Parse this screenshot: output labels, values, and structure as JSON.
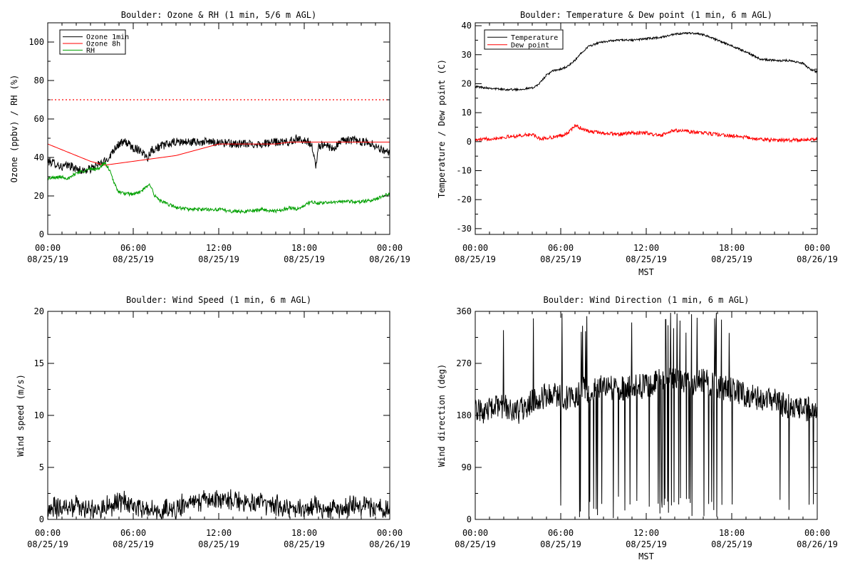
{
  "chart_data": [
    {
      "id": "ozone-rh",
      "type": "line",
      "title": "Boulder: Ozone & RH (1 min, 5/6 m AGL)",
      "ylabel": "Ozone (ppbv) / RH (%)",
      "xlabel": "",
      "ylim": [
        0,
        110
      ],
      "yticks": [
        0,
        20,
        40,
        60,
        80,
        100
      ],
      "xlim": [
        0,
        24
      ],
      "xticks": [
        {
          "value": 0,
          "time": "00:00",
          "date": "08/25/19"
        },
        {
          "value": 6,
          "time": "06:00",
          "date": "08/25/19"
        },
        {
          "value": 12,
          "time": "12:00",
          "date": "08/25/19"
        },
        {
          "value": 18,
          "time": "18:00",
          "date": "08/25/19"
        },
        {
          "value": 24,
          "time": "00:00",
          "date": "08/26/19"
        }
      ],
      "legend": {
        "position": "top-left"
      },
      "reference_lines": [
        {
          "y": 70,
          "color": "#ff0000",
          "style": "dotted"
        }
      ],
      "series": [
        {
          "name": "Ozone 1min",
          "color": "#000000",
          "noise": 2.2,
          "points": [
            [
              0,
              38
            ],
            [
              0.5,
              37
            ],
            [
              1,
              35
            ],
            [
              1.5,
              36
            ],
            [
              2,
              34
            ],
            [
              2.5,
              33
            ],
            [
              3,
              34
            ],
            [
              3.5,
              36
            ],
            [
              4,
              38
            ],
            [
              4.3,
              40
            ],
            [
              4.7,
              45
            ],
            [
              5,
              47
            ],
            [
              5.5,
              48
            ],
            [
              6,
              45
            ],
            [
              6.5,
              44
            ],
            [
              7,
              40
            ],
            [
              7.3,
              44
            ],
            [
              8,
              46
            ],
            [
              8.5,
              47
            ],
            [
              9,
              48
            ],
            [
              10,
              48
            ],
            [
              11,
              48
            ],
            [
              12,
              48
            ],
            [
              13,
              47
            ],
            [
              14,
              47
            ],
            [
              15,
              47
            ],
            [
              16,
              48
            ],
            [
              17,
              48
            ],
            [
              17.5,
              50
            ],
            [
              18,
              49
            ],
            [
              18.5,
              47
            ],
            [
              18.8,
              35
            ],
            [
              19,
              46
            ],
            [
              19.5,
              47
            ],
            [
              20,
              44
            ],
            [
              20.5,
              48
            ],
            [
              21,
              49
            ],
            [
              21.5,
              49
            ],
            [
              22,
              48
            ],
            [
              22.5,
              48
            ],
            [
              23,
              46
            ],
            [
              23.5,
              44
            ],
            [
              24,
              42
            ]
          ]
        },
        {
          "name": "Ozone 8h",
          "color": "#ff0000",
          "noise": 0,
          "points": [
            [
              0,
              47
            ],
            [
              1,
              44
            ],
            [
              2,
              41
            ],
            [
              3,
              38
            ],
            [
              4,
              36
            ],
            [
              5,
              37
            ],
            [
              6,
              38
            ],
            [
              7,
              39
            ],
            [
              8,
              40
            ],
            [
              9,
              41
            ],
            [
              10,
              43
            ],
            [
              11,
              45
            ],
            [
              12,
              47
            ],
            [
              13,
              47
            ],
            [
              14,
              47
            ],
            [
              15,
              47
            ],
            [
              16,
              47
            ],
            [
              17,
              48
            ],
            [
              18,
              48
            ],
            [
              19,
              48
            ],
            [
              20,
              48
            ],
            [
              21,
              48
            ],
            [
              22,
              48
            ],
            [
              23,
              48
            ],
            [
              24,
              48
            ]
          ]
        },
        {
          "name": "RH",
          "color": "#00a000",
          "noise": 0.9,
          "points": [
            [
              0,
              29
            ],
            [
              1,
              30
            ],
            [
              1.5,
              29
            ],
            [
              2,
              32
            ],
            [
              2.5,
              33
            ],
            [
              3,
              34
            ],
            [
              3.5,
              34
            ],
            [
              4,
              37
            ],
            [
              4.3,
              34
            ],
            [
              4.7,
              26
            ],
            [
              5,
              22
            ],
            [
              5.5,
              21
            ],
            [
              6,
              21
            ],
            [
              6.5,
              22
            ],
            [
              7,
              25
            ],
            [
              7.2,
              26
            ],
            [
              7.5,
              20
            ],
            [
              8,
              17
            ],
            [
              9,
              14
            ],
            [
              10,
              13
            ],
            [
              11,
              13
            ],
            [
              12,
              13
            ],
            [
              13,
              12
            ],
            [
              14,
              12
            ],
            [
              15,
              13
            ],
            [
              16,
              12
            ],
            [
              17,
              14
            ],
            [
              17.5,
              13
            ],
            [
              18,
              15
            ],
            [
              18.5,
              17
            ],
            [
              19,
              16
            ],
            [
              20,
              17
            ],
            [
              21,
              17
            ],
            [
              22,
              17
            ],
            [
              23,
              18
            ],
            [
              23.5,
              20
            ],
            [
              24,
              21
            ]
          ]
        }
      ]
    },
    {
      "id": "temp-dew",
      "type": "line",
      "title": "Boulder: Temperature & Dew point (1 min, 6 m AGL)",
      "ylabel": "Temperature / Dew point (C)",
      "xlabel": "MST",
      "ylim": [
        -32,
        41
      ],
      "yticks": [
        -30,
        -20,
        -10,
        0,
        10,
        20,
        30,
        40
      ],
      "xlim": [
        0,
        24
      ],
      "xticks": [
        {
          "value": 0,
          "time": "00:00",
          "date": "08/25/19"
        },
        {
          "value": 6,
          "time": "06:00",
          "date": "08/25/19"
        },
        {
          "value": 12,
          "time": "12:00",
          "date": "08/25/19"
        },
        {
          "value": 18,
          "time": "18:00",
          "date": "08/25/19"
        },
        {
          "value": 24,
          "time": "00:00",
          "date": "08/26/19"
        }
      ],
      "legend": {
        "position": "top-left"
      },
      "series": [
        {
          "name": "Temperature",
          "color": "#000000",
          "noise": 0.35,
          "points": [
            [
              0,
              19
            ],
            [
              1,
              18.5
            ],
            [
              2,
              18
            ],
            [
              3,
              18
            ],
            [
              4,
              18.5
            ],
            [
              4.5,
              20
            ],
            [
              5,
              23
            ],
            [
              5.5,
              24.5
            ],
            [
              6,
              25
            ],
            [
              6.5,
              26
            ],
            [
              7,
              28
            ],
            [
              7.5,
              31
            ],
            [
              8,
              33
            ],
            [
              9,
              34.5
            ],
            [
              10,
              35
            ],
            [
              11,
              35
            ],
            [
              12,
              35.5
            ],
            [
              13,
              36
            ],
            [
              14,
              37
            ],
            [
              15,
              37.5
            ],
            [
              16,
              37
            ],
            [
              17,
              35
            ],
            [
              18,
              33
            ],
            [
              19,
              31
            ],
            [
              20,
              28.5
            ],
            [
              21,
              28
            ],
            [
              22,
              28
            ],
            [
              23,
              27
            ],
            [
              23.5,
              25
            ],
            [
              24,
              24
            ]
          ]
        },
        {
          "name": "Dew point",
          "color": "#ff0000",
          "noise": 0.6,
          "points": [
            [
              0,
              0.5
            ],
            [
              1,
              1
            ],
            [
              2,
              1.5
            ],
            [
              3,
              2
            ],
            [
              4,
              2.5
            ],
            [
              4.5,
              1
            ],
            [
              5,
              1.2
            ],
            [
              6,
              2
            ],
            [
              6.5,
              3
            ],
            [
              7,
              5.5
            ],
            [
              7.5,
              4.5
            ],
            [
              8,
              3.5
            ],
            [
              9,
              3
            ],
            [
              10,
              2.5
            ],
            [
              11,
              3
            ],
            [
              12,
              3
            ],
            [
              13,
              2
            ],
            [
              14,
              4
            ],
            [
              15,
              3.5
            ],
            [
              16,
              3
            ],
            [
              17,
              2.5
            ],
            [
              18,
              2
            ],
            [
              19,
              1.5
            ],
            [
              20,
              0.8
            ],
            [
              21,
              0.5
            ],
            [
              22,
              0.5
            ],
            [
              23,
              0.5
            ],
            [
              24,
              1
            ]
          ]
        }
      ]
    },
    {
      "id": "wind-speed",
      "type": "line",
      "title": "Boulder: Wind Speed (1 min, 6 m AGL)",
      "ylabel": "Wind speed (m/s)",
      "xlabel": "",
      "ylim": [
        0,
        20
      ],
      "yticks": [
        0,
        5,
        10,
        15,
        20
      ],
      "xlim": [
        0,
        24
      ],
      "xticks": [
        {
          "value": 0,
          "time": "00:00",
          "date": "08/25/19"
        },
        {
          "value": 6,
          "time": "06:00",
          "date": "08/25/19"
        },
        {
          "value": 12,
          "time": "12:00",
          "date": "08/25/19"
        },
        {
          "value": 18,
          "time": "18:00",
          "date": "08/25/19"
        },
        {
          "value": 24,
          "time": "00:00",
          "date": "08/26/19"
        }
      ],
      "series": [
        {
          "name": "",
          "color": "#000000",
          "noise": 0.7,
          "points": [
            [
              0,
              0.8
            ],
            [
              2,
              1
            ],
            [
              4,
              0.8
            ],
            [
              5,
              1.6
            ],
            [
              6,
              1.2
            ],
            [
              7,
              0.6
            ],
            [
              8,
              0.5
            ],
            [
              9,
              0.9
            ],
            [
              10,
              1.5
            ],
            [
              11,
              1.6
            ],
            [
              12,
              1.8
            ],
            [
              13,
              1.7
            ],
            [
              14,
              1.4
            ],
            [
              15,
              1.3
            ],
            [
              16,
              1.2
            ],
            [
              17,
              0.8
            ],
            [
              18,
              0.9
            ],
            [
              19,
              1
            ],
            [
              20,
              0.9
            ],
            [
              21,
              0.9
            ],
            [
              22,
              1.2
            ],
            [
              23,
              0.7
            ],
            [
              24,
              0.5
            ]
          ]
        }
      ]
    },
    {
      "id": "wind-direction",
      "type": "line",
      "title": "Boulder: Wind Direction (1 min, 6 m AGL)",
      "ylabel": "Wind direction (deg)",
      "xlabel": "MST",
      "ylim": [
        0,
        360
      ],
      "yticks": [
        0,
        90,
        180,
        270,
        360
      ],
      "xlim": [
        0,
        24
      ],
      "xticks": [
        {
          "value": 0,
          "time": "00:00",
          "date": "08/25/19"
        },
        {
          "value": 6,
          "time": "06:00",
          "date": "08/25/19"
        },
        {
          "value": 12,
          "time": "12:00",
          "date": "08/25/19"
        },
        {
          "value": 18,
          "time": "18:00",
          "date": "08/25/19"
        },
        {
          "value": 24,
          "time": "00:00",
          "date": "08/26/19"
        }
      ],
      "series": [
        {
          "name": "",
          "color": "#000000",
          "noise": 22,
          "points": [
            [
              0,
              185
            ],
            [
              1,
              190
            ],
            [
              2,
              195
            ],
            [
              3,
              185
            ],
            [
              4,
              205
            ],
            [
              5,
              215
            ],
            [
              6,
              215
            ],
            [
              7,
              205
            ],
            [
              7.5,
              230
            ],
            [
              8,
              220
            ],
            [
              9,
              230
            ],
            [
              10,
              225
            ],
            [
              11,
              230
            ],
            [
              12,
              230
            ],
            [
              13,
              240
            ],
            [
              14,
              245
            ],
            [
              15,
              235
            ],
            [
              16,
              240
            ],
            [
              17,
              230
            ],
            [
              18,
              225
            ],
            [
              19,
              215
            ],
            [
              20,
              210
            ],
            [
              21,
              205
            ],
            [
              22,
              195
            ],
            [
              23,
              190
            ],
            [
              24,
              195
            ]
          ]
        }
      ]
    }
  ]
}
